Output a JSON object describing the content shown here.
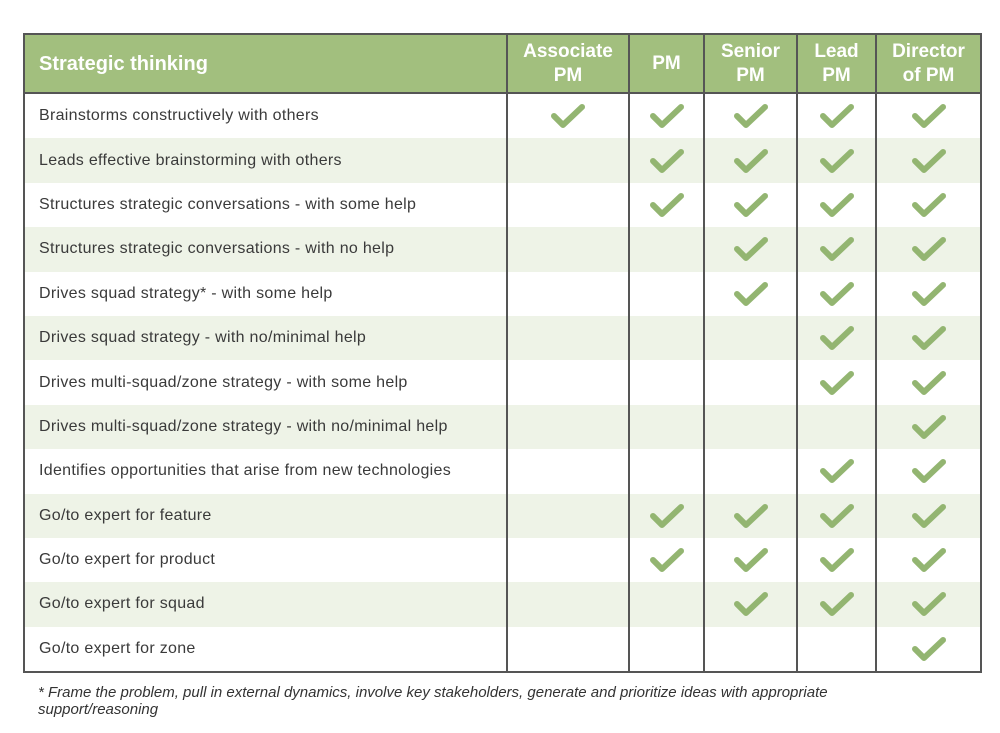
{
  "colors": {
    "header_bg": "#a2bf7e",
    "check": "#93b571",
    "stripe": "#eef3e7",
    "border": "#555555"
  },
  "table": {
    "section_title": "Strategic thinking",
    "levels": [
      {
        "line1": "Associate",
        "line2": "PM"
      },
      {
        "line1": "PM",
        "line2": ""
      },
      {
        "line1": "Senior",
        "line2": "PM"
      },
      {
        "line1": "Lead",
        "line2": "PM"
      },
      {
        "line1": "Director",
        "line2": "of PM"
      }
    ],
    "check_icon": "checkmark-icon",
    "rows": [
      {
        "label": "Brainstorms constructively with others",
        "checks": [
          true,
          true,
          true,
          true,
          true
        ]
      },
      {
        "label": "Leads effective brainstorming with others",
        "checks": [
          false,
          true,
          true,
          true,
          true
        ]
      },
      {
        "label": "Structures strategic conversations - with some help",
        "checks": [
          false,
          true,
          true,
          true,
          true
        ]
      },
      {
        "label": "Structures strategic conversations - with no help",
        "checks": [
          false,
          false,
          true,
          true,
          true
        ]
      },
      {
        "label": "Drives squad strategy* - with some help",
        "checks": [
          false,
          false,
          true,
          true,
          true
        ]
      },
      {
        "label": "Drives squad strategy - with no/minimal help",
        "checks": [
          false,
          false,
          false,
          true,
          true
        ]
      },
      {
        "label": "Drives multi-squad/zone strategy - with some help",
        "checks": [
          false,
          false,
          false,
          true,
          true
        ]
      },
      {
        "label": "Drives multi-squad/zone strategy - with no/minimal help",
        "checks": [
          false,
          false,
          false,
          false,
          true
        ]
      },
      {
        "label": "Identifies opportunities that arise from new technologies",
        "checks": [
          false,
          false,
          false,
          true,
          true
        ]
      },
      {
        "label": "Go/to expert for feature",
        "checks": [
          false,
          true,
          true,
          true,
          true
        ]
      },
      {
        "label": "Go/to expert for product",
        "checks": [
          false,
          true,
          true,
          true,
          true
        ]
      },
      {
        "label": "Go/to expert for squad",
        "checks": [
          false,
          false,
          true,
          true,
          true
        ]
      },
      {
        "label": "Go/to expert for zone",
        "checks": [
          false,
          false,
          false,
          false,
          true
        ]
      }
    ]
  },
  "footnote": "* Frame the problem, pull in external dynamics, involve key stakeholders, generate and prioritize ideas with appropriate support/reasoning"
}
